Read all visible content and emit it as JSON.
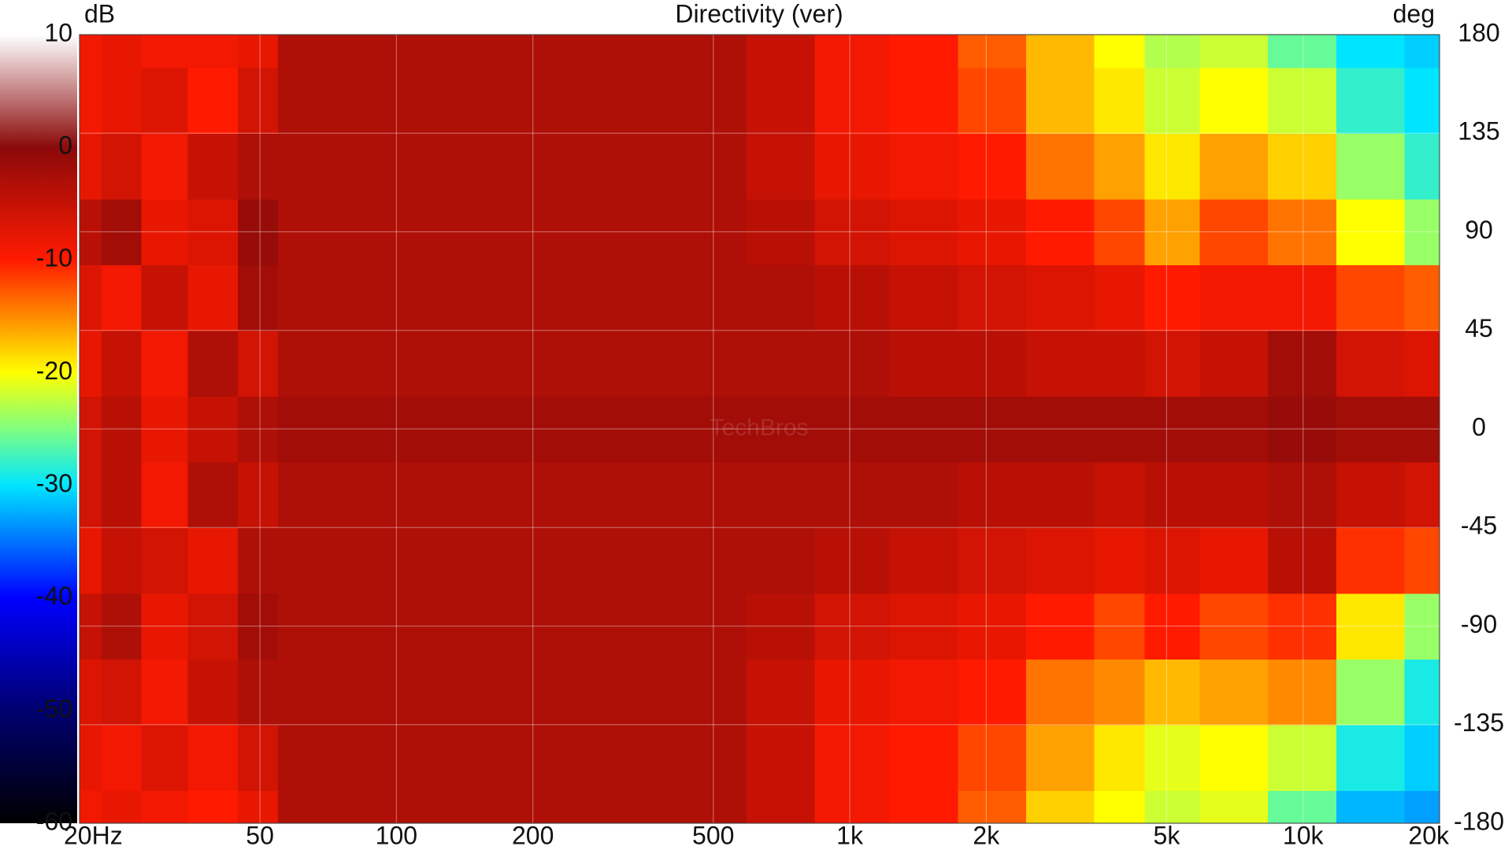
{
  "chart_data": {
    "type": "heatmap",
    "title": "Directivity (ver)",
    "zlabel": "dB",
    "ylabel": "deg",
    "watermark": "TechBros",
    "xscale": "log",
    "grid": true,
    "xlim": [
      20,
      20000
    ],
    "xticks": [
      {
        "value": 20,
        "label": "20Hz"
      },
      50,
      100,
      200,
      500,
      {
        "value": 1000,
        "label": "1k"
      },
      {
        "value": 2000,
        "label": "2k"
      },
      {
        "value": 5000,
        "label": "5k"
      },
      {
        "value": 10000,
        "label": "10k"
      },
      {
        "value": 20000,
        "label": "20k"
      }
    ],
    "ylim": [
      -180,
      180
    ],
    "yticks": [
      180,
      135,
      90,
      45,
      0,
      -45,
      -90,
      -135,
      -180
    ],
    "zlim": [
      -60,
      10
    ],
    "zticks": [
      10,
      0,
      -10,
      -20,
      -30,
      -40,
      -50,
      -60
    ],
    "colorscale": [
      [
        10,
        "#ffffff"
      ],
      [
        0,
        "#8b0a0a"
      ],
      [
        -10,
        "#ff1a00"
      ],
      [
        -15,
        "#ff8a00"
      ],
      [
        -20,
        "#ffff00"
      ],
      [
        -25,
        "#80ff80"
      ],
      [
        -30,
        "#00e5ff"
      ],
      [
        -40,
        "#0000ff"
      ],
      [
        -50,
        "#000070"
      ],
      [
        -60,
        "#000000"
      ]
    ],
    "x": [
      20,
      25,
      30,
      40,
      50,
      60,
      80,
      100,
      200,
      500,
      700,
      1000,
      1500,
      2000,
      3000,
      4000,
      5000,
      7000,
      10000,
      14000,
      20000
    ],
    "y": [
      -180,
      -150,
      -120,
      -90,
      -60,
      -30,
      0,
      30,
      60,
      90,
      120,
      150,
      180
    ],
    "z": [
      [
        -9,
        -8,
        -9,
        -10,
        -8,
        -3,
        -3,
        -3,
        -3,
        -3,
        -5,
        -9,
        -10,
        -13,
        -18,
        -20,
        -22,
        -21,
        -26,
        -32,
        -33
      ],
      [
        -8,
        -9,
        -7,
        -9,
        -6,
        -3,
        -3,
        -3,
        -3,
        -3,
        -5,
        -9,
        -10,
        -12,
        -16,
        -19,
        -21,
        -20,
        -22,
        -29,
        -31
      ],
      [
        -7,
        -6,
        -9,
        -5,
        -3,
        -3,
        -3,
        -3,
        -3,
        -3,
        -5,
        -8,
        -9,
        -10,
        -14,
        -15,
        -17,
        -16,
        -15,
        -24,
        -29
      ],
      [
        -5,
        -3,
        -8,
        -6,
        -2,
        -3,
        -3,
        -3,
        -3,
        -3,
        -4,
        -6,
        -7,
        -8,
        -10,
        -12,
        -10,
        -12,
        -11,
        -19,
        -24
      ],
      [
        -8,
        -5,
        -6,
        -8,
        -3,
        -3,
        -3,
        -3,
        -3,
        -3,
        -3,
        -4,
        -5,
        -6,
        -7,
        -8,
        -7,
        -8,
        -4,
        -11,
        -12
      ],
      [
        -6,
        -4,
        -9,
        -3,
        -5,
        -3,
        -3,
        -3,
        -3,
        -3,
        -3,
        -3,
        -3,
        -4,
        -4,
        -5,
        -4,
        -4,
        -3,
        -5,
        -6
      ],
      [
        -6,
        -4,
        -8,
        -5,
        -3,
        -2,
        -2,
        -2,
        -2,
        -2,
        -2,
        -2,
        -2,
        -2,
        -2,
        -2,
        -2,
        -2,
        -1,
        -2,
        -2
      ],
      [
        -8,
        -5,
        -9,
        -3,
        -6,
        -3,
        -3,
        -3,
        -3,
        -3,
        -3,
        -3,
        -4,
        -4,
        -5,
        -5,
        -6,
        -5,
        -2,
        -6,
        -7
      ],
      [
        -7,
        -9,
        -5,
        -8,
        -2,
        -3,
        -3,
        -3,
        -3,
        -3,
        -3,
        -4,
        -5,
        -6,
        -7,
        -8,
        -10,
        -9,
        -9,
        -12,
        -13
      ],
      [
        -4,
        -2,
        -8,
        -7,
        -1,
        -3,
        -3,
        -3,
        -3,
        -3,
        -4,
        -6,
        -7,
        -8,
        -10,
        -12,
        -16,
        -12,
        -14,
        -20,
        -24
      ],
      [
        -8,
        -6,
        -9,
        -5,
        -3,
        -3,
        -3,
        -3,
        -3,
        -3,
        -5,
        -8,
        -9,
        -10,
        -14,
        -16,
        -19,
        -16,
        -18,
        -24,
        -28
      ],
      [
        -9,
        -8,
        -7,
        -10,
        -6,
        -3,
        -3,
        -3,
        -3,
        -3,
        -5,
        -9,
        -10,
        -12,
        -17,
        -19,
        -22,
        -20,
        -22,
        -28,
        -30
      ],
      [
        -9,
        -8,
        -9,
        -9,
        -8,
        -3,
        -3,
        -3,
        -3,
        -3,
        -5,
        -9,
        -10,
        -13,
        -17,
        -20,
        -23,
        -22,
        -26,
        -30,
        -31
      ]
    ]
  }
}
